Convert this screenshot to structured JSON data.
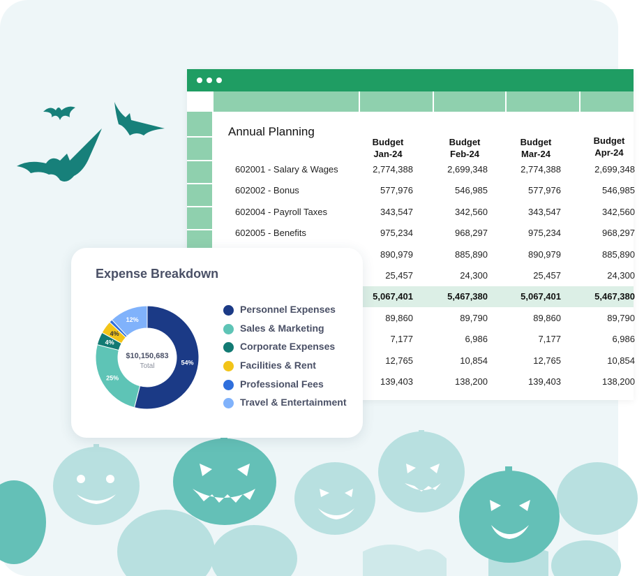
{
  "sheet": {
    "title": "Annual Planning",
    "columns": [
      {
        "line1": "Budget",
        "line2": "Jan-24"
      },
      {
        "line1": "Budget",
        "line2": "Feb-24"
      },
      {
        "line1": "Budget",
        "line2": "Mar-24"
      },
      {
        "line1": "Budget",
        "line2": "Apr-24"
      }
    ],
    "rows": [
      {
        "label": "602001 - Salary & Wages",
        "values": [
          "2,774,388",
          "2,699,348",
          "2,774,388",
          "2,699,348"
        ],
        "highlight": false
      },
      {
        "label": "602002 - Bonus",
        "values": [
          "577,976",
          "546,985",
          "577,976",
          "546,985"
        ],
        "highlight": false
      },
      {
        "label": "602004 - Payroll Taxes",
        "values": [
          "343,547",
          "342,560",
          "343,547",
          "342,560"
        ],
        "highlight": false
      },
      {
        "label": "602005 - Benefits",
        "values": [
          "975,234",
          "968,297",
          "975,234",
          "968,297"
        ],
        "highlight": false
      },
      {
        "label": "",
        "values": [
          "890,979",
          "885,890",
          "890,979",
          "885,890"
        ],
        "highlight": false
      },
      {
        "label": "",
        "values": [
          "25,457",
          "24,300",
          "25,457",
          "24,300"
        ],
        "highlight": false
      },
      {
        "label": "",
        "values": [
          "5,067,401",
          "5,467,380",
          "5,067,401",
          "5,467,380"
        ],
        "highlight": true
      },
      {
        "label": "",
        "values": [
          "89,860",
          "89,790",
          "89,860",
          "89,790"
        ],
        "highlight": false
      },
      {
        "label": "",
        "values": [
          "7,177",
          "6,986",
          "7,177",
          "6,986"
        ],
        "highlight": false
      },
      {
        "label": "",
        "values": [
          "12,765",
          "10,854",
          "12,765",
          "10,854"
        ],
        "highlight": false
      },
      {
        "label": "",
        "values": [
          "139,403",
          "138,200",
          "139,403",
          "138,200"
        ],
        "highlight": false
      }
    ]
  },
  "card": {
    "title": "Expense Breakdown",
    "center_value": "$10,150,683",
    "center_label": "Total"
  },
  "chart_data": {
    "type": "pie",
    "title": "Expense Breakdown",
    "slices": [
      {
        "name": "Personnel Expenses",
        "percent": 54,
        "label": "54%",
        "color": "#1b3a86"
      },
      {
        "name": "Sales & Marketing",
        "percent": 25,
        "label": "25%",
        "color": "#5ec4b6"
      },
      {
        "name": "Corporate Expenses",
        "percent": 4,
        "label": "4%",
        "color": "#127a73"
      },
      {
        "name": "Facilities & Rent",
        "percent": 4,
        "label": "4%",
        "color": "#f2c418"
      },
      {
        "name": "Professional Fees",
        "percent": 1,
        "label": "",
        "color": "#2f6fdc"
      },
      {
        "name": "Travel & Entertainment",
        "percent": 12,
        "label": "12%",
        "color": "#80b2fb"
      }
    ],
    "total": "$10,150,683",
    "total_label": "Total"
  },
  "colors": {
    "brand_green": "#1f9d63",
    "header_green": "#8fd0ae",
    "highlight_row": "#dcefe6",
    "bat": "#17807a",
    "pumpkin_dark": "#64c0b7",
    "pumpkin_light": "#b8e0e0"
  }
}
